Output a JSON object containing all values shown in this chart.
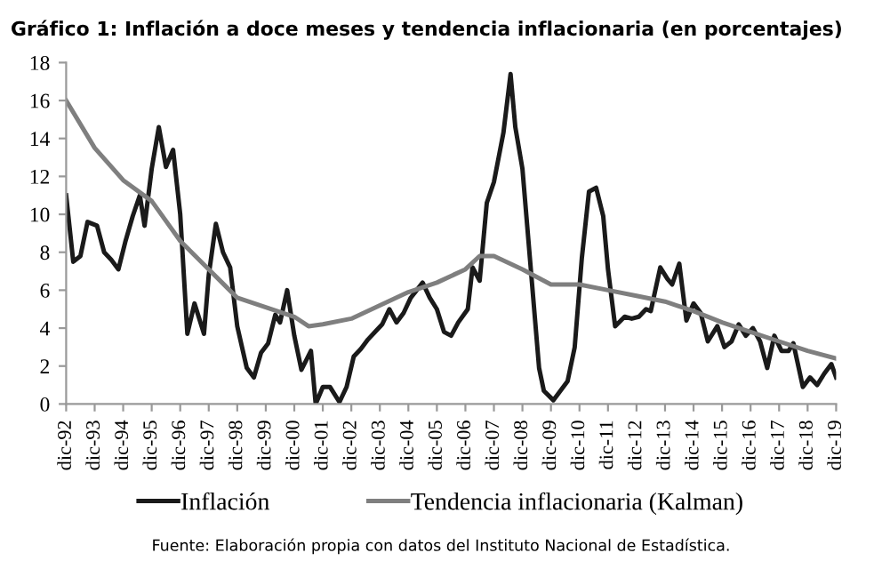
{
  "chart_data": {
    "type": "line",
    "title": "Gráfico 1: Inflación a doce meses y tendencia inflacionaria (en porcentajes)",
    "annotations": [
      "Fuente: Elaboración propia con datos del Instituto Nacional de Estadística."
    ],
    "series": [
      {
        "name": "Inflación",
        "color": "#1a1a1a",
        "x": [
          "1992-12",
          "1993-03",
          "1993-06",
          "1993-09",
          "1994-01",
          "1994-04",
          "1994-07",
          "1994-10",
          "1995-01",
          "1995-04",
          "1995-07",
          "1995-09",
          "1995-12",
          "1996-03",
          "1996-06",
          "1996-09",
          "1996-12",
          "1997-03",
          "1997-06",
          "1997-10",
          "1997-12",
          "1998-03",
          "1998-06",
          "1998-09",
          "1998-12",
          "1999-04",
          "1999-07",
          "1999-10",
          "2000-01",
          "2000-04",
          "2000-06",
          "2000-09",
          "2000-12",
          "2001-03",
          "2001-07",
          "2001-09",
          "2001-12",
          "2002-03",
          "2002-07",
          "2002-10",
          "2003-01",
          "2003-04",
          "2003-07",
          "2003-10",
          "2004-01",
          "2004-04",
          "2004-07",
          "2004-10",
          "2005-01",
          "2005-06",
          "2005-09",
          "2005-12",
          "2006-03",
          "2006-06",
          "2006-09",
          "2007-01",
          "2007-03",
          "2007-06",
          "2007-09",
          "2007-12",
          "2008-04",
          "2008-07",
          "2008-09",
          "2008-12",
          "2009-04",
          "2009-07",
          "2009-09",
          "2010-01",
          "2010-04",
          "2010-07",
          "2010-10",
          "2011-01",
          "2011-04",
          "2011-07",
          "2011-10",
          "2011-12",
          "2012-03",
          "2012-07",
          "2012-10",
          "2013-01",
          "2013-04",
          "2013-06",
          "2013-10",
          "2014-01",
          "2014-03",
          "2014-06",
          "2014-09",
          "2014-12",
          "2015-03",
          "2015-06",
          "2015-10",
          "2016-01",
          "2016-04",
          "2016-07",
          "2016-10",
          "2017-01",
          "2017-04",
          "2017-07",
          "2017-10",
          "2018-01",
          "2018-04",
          "2018-06",
          "2018-10",
          "2019-01",
          "2019-04",
          "2019-07",
          "2019-10",
          "2019-12"
        ],
        "values": [
          11.0,
          7.5,
          7.8,
          9.6,
          9.4,
          8.0,
          7.6,
          7.1,
          8.6,
          9.9,
          11.0,
          9.4,
          12.4,
          14.6,
          12.5,
          13.4,
          10.0,
          3.7,
          5.3,
          3.7,
          6.8,
          9.5,
          8.0,
          7.2,
          4.1,
          1.9,
          1.4,
          2.7,
          3.2,
          4.7,
          4.3,
          6.0,
          3.6,
          1.8,
          2.8,
          0,
          0.9,
          0.9,
          0.1,
          0.9,
          2.5,
          2.9,
          3.4,
          3.8,
          4.2,
          5.0,
          4.3,
          4.8,
          5.6,
          6.4,
          5.6,
          5.0,
          3.8,
          3.6,
          4.3,
          5.0,
          7.2,
          6.5,
          10.6,
          11.7,
          14.3,
          17.4,
          14.6,
          12.4,
          6.4,
          1.9,
          0.7,
          0.2,
          0.7,
          1.2,
          3.0,
          7.7,
          11.2,
          11.4,
          9.9,
          7.1,
          4.1,
          4.6,
          4.5,
          4.6,
          5.0,
          4.9,
          7.2,
          6.6,
          6.3,
          7.4,
          4.4,
          5.3,
          4.8,
          3.3,
          4.1,
          3.0,
          3.3,
          4.2,
          3.6,
          4.0,
          3.3,
          1.9,
          3.6,
          2.8,
          2.8,
          3.2,
          0.9,
          1.4,
          1.0,
          1.6,
          2.1,
          1.4
        ]
      },
      {
        "name": "Tendencia inflacionaria (Kalman)",
        "color": "#7f7f7f",
        "x": [
          "1992-12",
          "1993-12",
          "1994-12",
          "1995-12",
          "1996-12",
          "1997-12",
          "1998-12",
          "1999-12",
          "2000-12",
          "2001-06",
          "2001-12",
          "2002-12",
          "2003-12",
          "2004-12",
          "2005-12",
          "2006-12",
          "2007-06",
          "2007-12",
          "2008-12",
          "2009-12",
          "2010-12",
          "2011-12",
          "2012-12",
          "2013-12",
          "2014-12",
          "2015-12",
          "2016-12",
          "2017-12",
          "2018-12",
          "2019-12"
        ],
        "values": [
          16.0,
          13.5,
          11.8,
          10.7,
          8.6,
          7.1,
          5.6,
          5.1,
          4.6,
          4.1,
          4.2,
          4.5,
          5.2,
          5.9,
          6.4,
          7.1,
          7.8,
          7.8,
          7.1,
          6.3,
          6.3,
          6.0,
          5.7,
          5.4,
          4.9,
          4.3,
          3.8,
          3.3,
          2.8,
          2.4
        ]
      }
    ],
    "xlim": [
      "1992-12",
      "2019-12"
    ],
    "xticks": [
      {
        "value": "1992-12",
        "label": "dic-92"
      },
      {
        "value": "1993-12",
        "label": "dic-93"
      },
      {
        "value": "1994-12",
        "label": "dic-94"
      },
      {
        "value": "1995-12",
        "label": "dic-95"
      },
      {
        "value": "1996-12",
        "label": "dic-96"
      },
      {
        "value": "1997-12",
        "label": "dic-97"
      },
      {
        "value": "1998-12",
        "label": "dic-98"
      },
      {
        "value": "1999-12",
        "label": "dic-99"
      },
      {
        "value": "2000-12",
        "label": "dic-00"
      },
      {
        "value": "2001-12",
        "label": "dic-01"
      },
      {
        "value": "2002-12",
        "label": "dic-02"
      },
      {
        "value": "2003-12",
        "label": "dic-03"
      },
      {
        "value": "2004-12",
        "label": "dic-04"
      },
      {
        "value": "2005-12",
        "label": "dic-05"
      },
      {
        "value": "2006-12",
        "label": "dic-06"
      },
      {
        "value": "2007-12",
        "label": "dic-07"
      },
      {
        "value": "2008-12",
        "label": "dic-08"
      },
      {
        "value": "2009-12",
        "label": "dic-09"
      },
      {
        "value": "2010-12",
        "label": "dic-10"
      },
      {
        "value": "2011-12",
        "label": "dic-11"
      },
      {
        "value": "2012-12",
        "label": "dic-12"
      },
      {
        "value": "2013-12",
        "label": "dic-13"
      },
      {
        "value": "2014-12",
        "label": "dic-14"
      },
      {
        "value": "2015-12",
        "label": "dic-15"
      },
      {
        "value": "2016-12",
        "label": "dic-16"
      },
      {
        "value": "2017-12",
        "label": "dic-17"
      },
      {
        "value": "2018-12",
        "label": "dic-18"
      },
      {
        "value": "2019-12",
        "label": "dic-19"
      }
    ],
    "ylim": [
      0,
      18
    ],
    "yticks": [
      0,
      2,
      4,
      6,
      8,
      10,
      12,
      14,
      16,
      18
    ],
    "grid": false,
    "legend": "bottom",
    "marker": "none",
    "line_style": "solid"
  }
}
